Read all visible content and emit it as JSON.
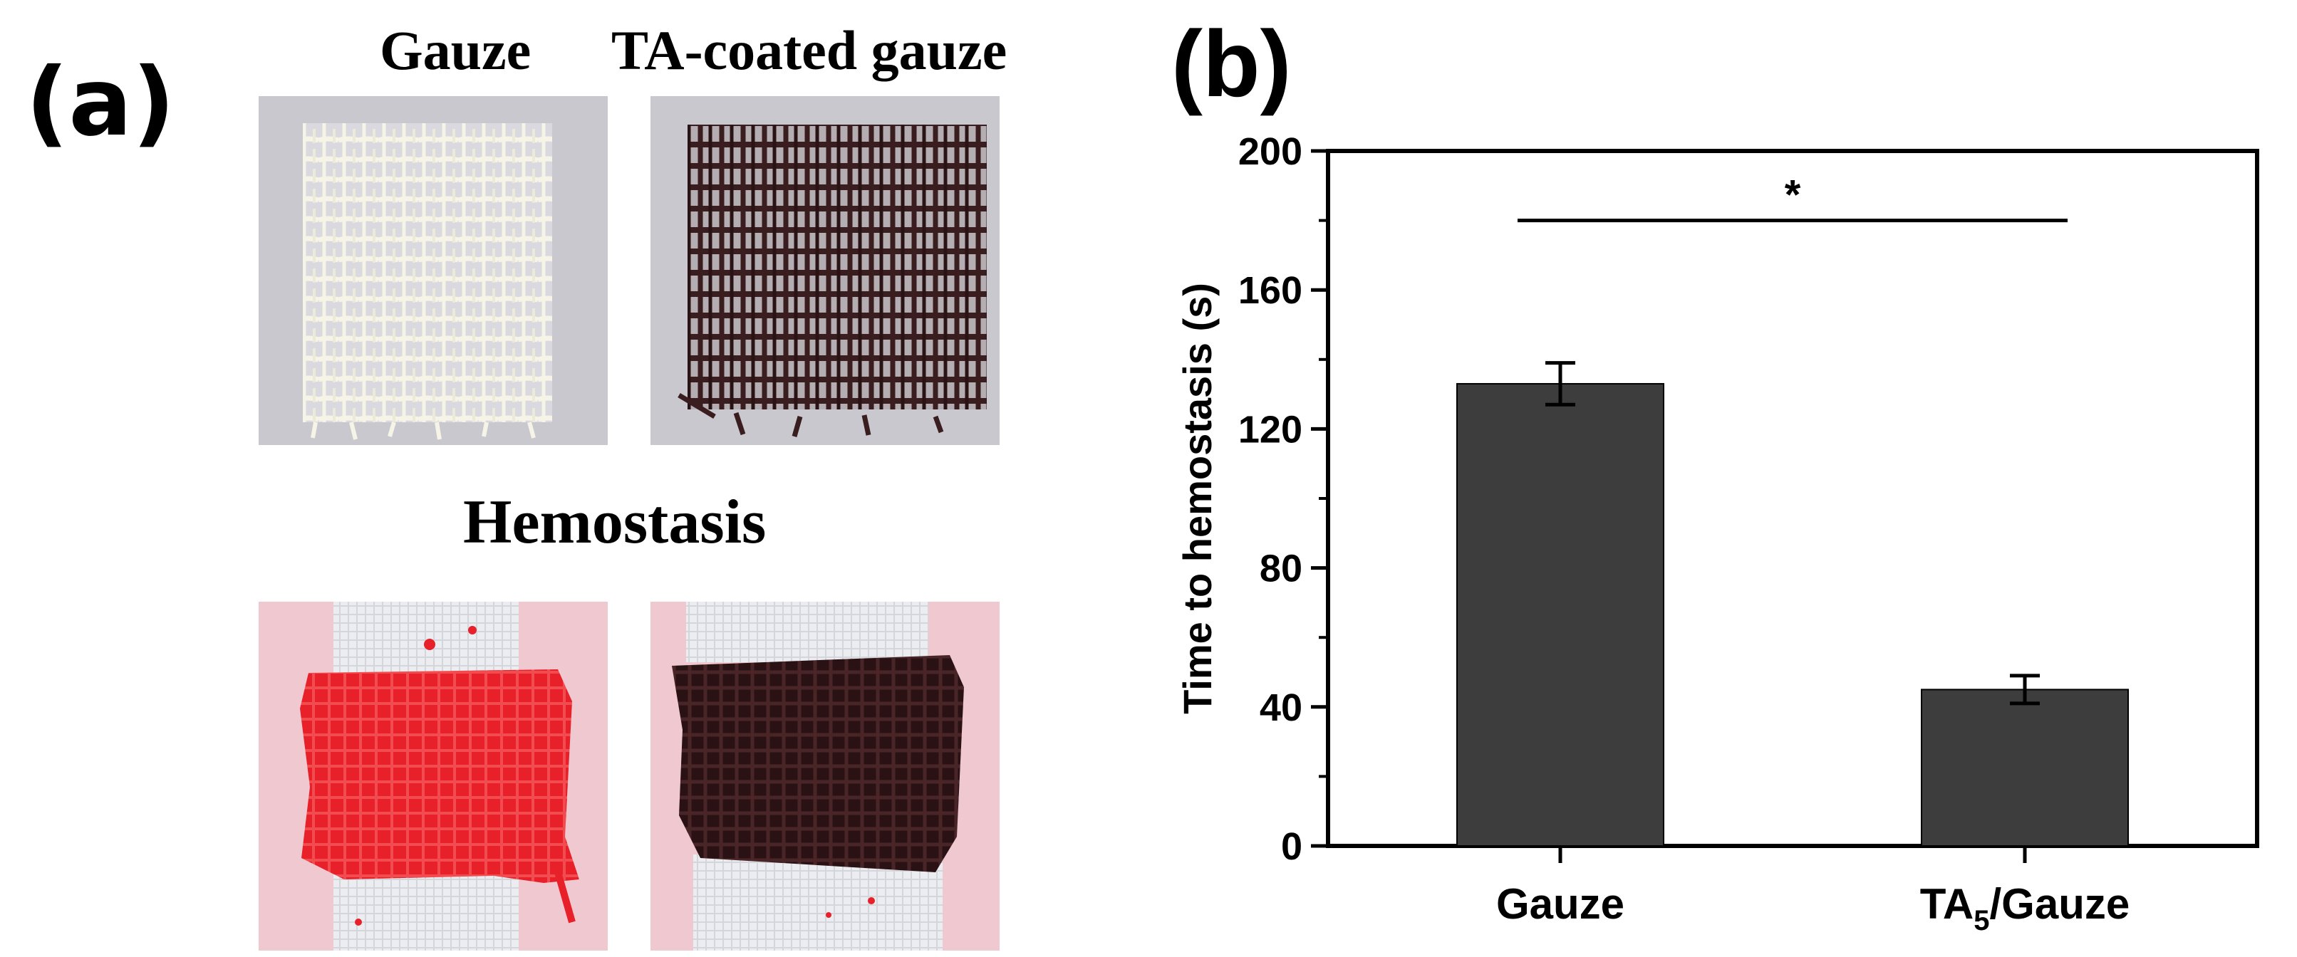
{
  "panel_a": {
    "label": "(a)",
    "titles": {
      "gauze": "Gauze",
      "ta_coated": "TA-coated gauze",
      "hemostasis": "Hemostasis"
    }
  },
  "panel_b": {
    "label": "(b)"
  },
  "colors": {
    "bar": "#3d3d3d",
    "blood_red": "#e8202a",
    "ta_brown": "#3a1d1f",
    "gauze_white": "#f3f1e4",
    "backdrop_gray": "#c9c8cf",
    "skin_pink": "#efc9cf"
  },
  "chart_data": {
    "type": "bar",
    "title": "",
    "xlabel": "",
    "ylabel": "Time to hemostasis (s)",
    "categories": [
      "Gauze",
      "TA5/Gauze"
    ],
    "category_labels": [
      {
        "main": "Gauze",
        "sub": "",
        "tail": ""
      },
      {
        "main": "TA",
        "sub": "5",
        "tail": "/Gauze"
      }
    ],
    "values": [
      133,
      45
    ],
    "errors": [
      6,
      4
    ],
    "ylim": [
      0,
      200
    ],
    "yticks": [
      0,
      40,
      80,
      120,
      160,
      200
    ],
    "ytick_labels": [
      "0",
      "40",
      "80",
      "120",
      "160",
      "200"
    ],
    "grid": false,
    "significance": {
      "from": 0,
      "to": 1,
      "y": 180,
      "label": "*"
    }
  }
}
